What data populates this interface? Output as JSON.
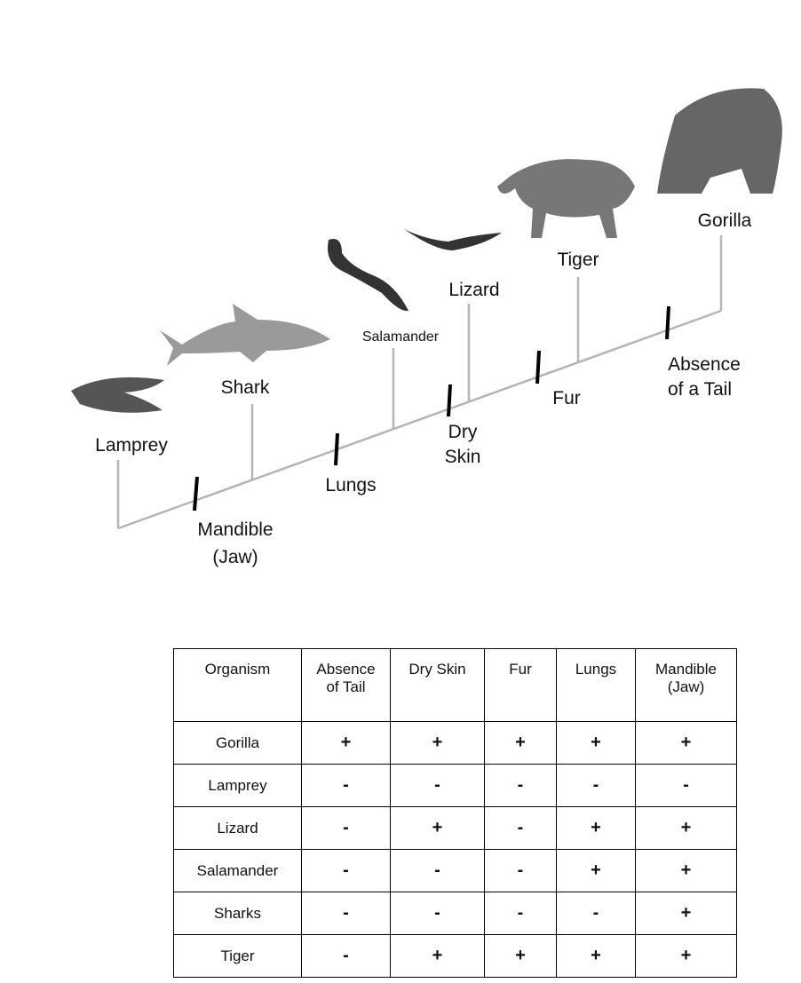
{
  "organisms": [
    "Lamprey",
    "Shark",
    "Salamander",
    "Lizard",
    "Tiger",
    "Gorilla"
  ],
  "traits": [
    [
      "Mandible",
      "(Jaw)"
    ],
    [
      "Lungs"
    ],
    [
      "Dry",
      "Skin"
    ],
    [
      "Fur"
    ],
    [
      "Absence",
      "of a Tail"
    ]
  ],
  "table": {
    "header": [
      "Organism",
      "Absence of Tail",
      "Dry Skin",
      "Fur",
      "Lungs",
      "Mandible (Jaw)"
    ],
    "rows": [
      [
        "Gorilla",
        "+",
        "+",
        "+",
        "+",
        "+"
      ],
      [
        "Lamprey",
        "-",
        "-",
        "-",
        "-",
        "-"
      ],
      [
        "Lizard",
        "-",
        "+",
        "-",
        "+",
        "+"
      ],
      [
        "Salamander",
        "-",
        "-",
        "-",
        "+",
        "+"
      ],
      [
        "Sharks",
        "-",
        "-",
        "-",
        "-",
        "+"
      ],
      [
        "Tiger",
        "-",
        "+",
        "+",
        "+",
        "+"
      ]
    ]
  }
}
